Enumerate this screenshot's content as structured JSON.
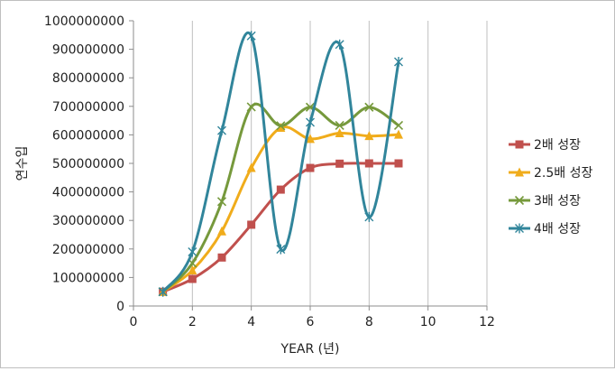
{
  "chart_data": {
    "type": "scatter",
    "title": "",
    "xlabel": "YEAR (년)",
    "ylabel": "연수입",
    "xlim": [
      0,
      12
    ],
    "ylim": [
      0,
      1000000000
    ],
    "x_ticks": [
      "0",
      "2",
      "4",
      "6",
      "8",
      "10",
      "12"
    ],
    "y_ticks": [
      "0",
      "100000000",
      "200000000",
      "300000000",
      "400000000",
      "500000000",
      "600000000",
      "700000000",
      "800000000",
      "900000000",
      "1000000000"
    ],
    "grid": "vertical",
    "legend_position": "right",
    "x": [
      1,
      2,
      3,
      4,
      5,
      6,
      7,
      8,
      9
    ],
    "series": [
      {
        "name": "2배 성장",
        "color": "#c0504d",
        "marker": "square",
        "values": [
          50000000,
          95000000,
          170000000,
          285000000,
          408000000,
          484000000,
          499000000,
          500000000,
          500000000
        ]
      },
      {
        "name": "2.5배 성장",
        "color": "#f0ac1b",
        "marker": "triangle",
        "values": [
          50000000,
          125000000,
          262000000,
          484000000,
          625000000,
          586000000,
          606000000,
          596000000,
          601000000
        ]
      },
      {
        "name": "3배 성장",
        "color": "#76993c",
        "marker": "x",
        "values": [
          50000000,
          150000000,
          366000000,
          698000000,
          632000000,
          697000000,
          633000000,
          697000000,
          633000000
        ]
      },
      {
        "name": "4배 성장",
        "color": "#31859b",
        "marker": "star",
        "values": [
          50000000,
          190000000,
          615000000,
          947000000,
          199000000,
          644000000,
          917000000,
          312000000,
          856000000
        ]
      }
    ]
  }
}
